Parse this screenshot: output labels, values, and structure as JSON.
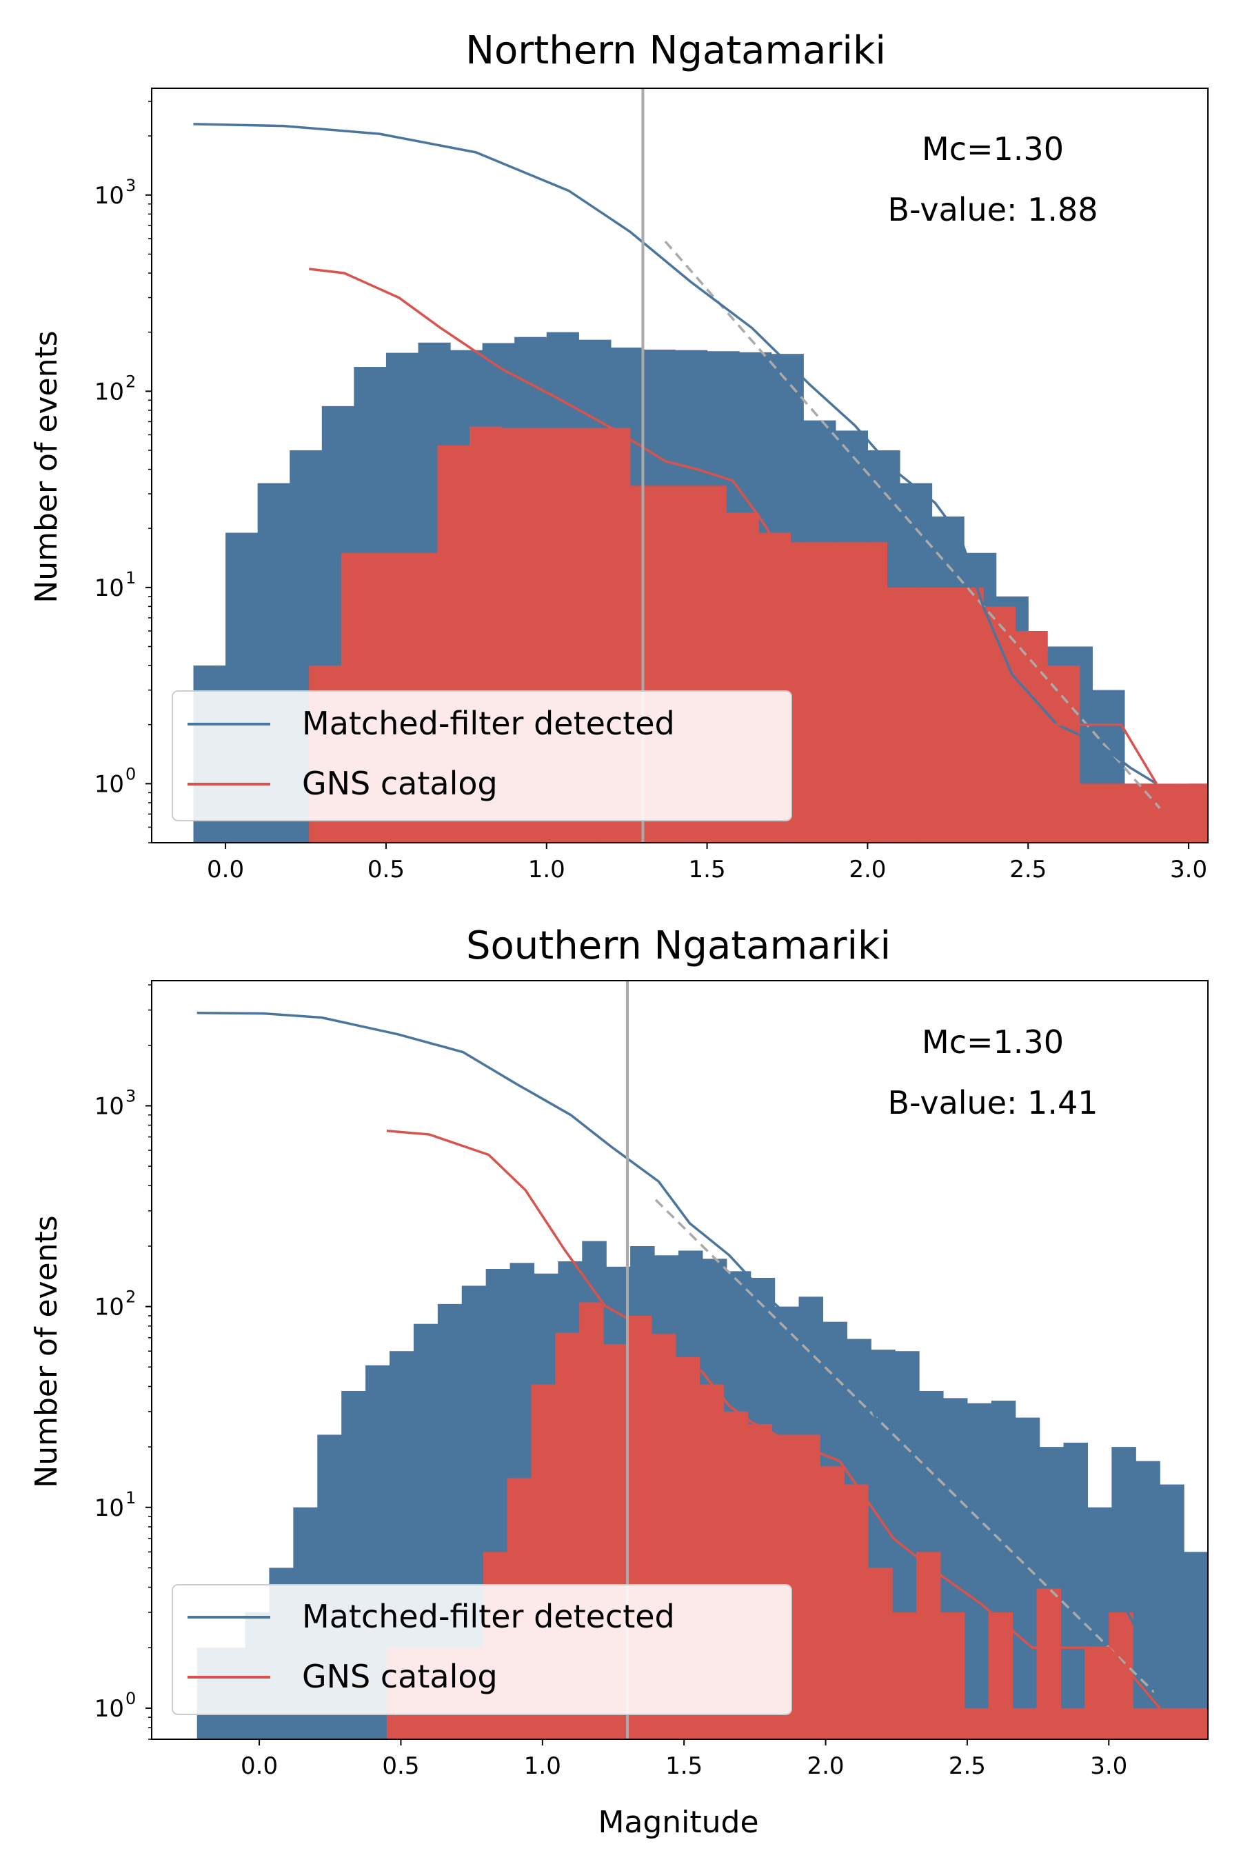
{
  "chart_data": [
    {
      "type": "histogram",
      "title": "Northern Ngatamariki",
      "xlabel": "",
      "ylabel": "Number of events",
      "xlim": [
        -0.23,
        3.06
      ],
      "ylim": [
        0.5,
        3500
      ],
      "log_y": true,
      "grid": false,
      "x_ticks": [
        "0.0",
        "0.5",
        "1.0",
        "1.5",
        "2.0",
        "2.5",
        "3.0"
      ],
      "y_ticks": [
        "10^0",
        "10^1",
        "10^2",
        "10^3"
      ],
      "annotations": {
        "mc": "Mc=1.30",
        "b_value": "B-value: 1.88"
      },
      "mc_line_x": 1.3,
      "legend": {
        "location": "lower-left",
        "entries": [
          "Matched-filter detected",
          "GNS catalog"
        ]
      },
      "colors": {
        "matched": "#4a759d",
        "gns": "#d9534d",
        "fit": "#aaaaaa",
        "mc": "#aaaaaa"
      },
      "hist_matched": {
        "x0": -0.1,
        "width": 0.1,
        "min": 0.5,
        "values": [
          4,
          19,
          34,
          50,
          84,
          133,
          157,
          177,
          162,
          176,
          189,
          200,
          183,
          167,
          163,
          162,
          160,
          158,
          155,
          71,
          63,
          50,
          34,
          23,
          15,
          9,
          5,
          5,
          3,
          1,
          0.5,
          1,
          1
        ]
      },
      "hist_gns": {
        "x0": 0.26,
        "width": 0.1,
        "min": 0.5,
        "values": [
          4,
          15,
          15,
          15,
          53,
          66,
          65,
          65,
          65,
          65,
          33,
          33,
          33,
          24,
          19,
          17,
          17,
          17,
          10,
          10,
          10,
          8,
          6,
          4,
          1,
          1,
          1,
          1,
          0.5,
          0.5,
          0.5,
          0.5,
          0.5,
          2,
          2
        ]
      },
      "cum_matched": {
        "x": [
          -0.1,
          0.18,
          0.48,
          0.78,
          1.07,
          1.26,
          1.45,
          1.64,
          1.82,
          1.96,
          2.08,
          2.21,
          2.29,
          2.36,
          2.45,
          2.59,
          2.72,
          2.82,
          2.9
        ],
        "y": [
          2300,
          2250,
          2050,
          1650,
          1050,
          650,
          360,
          210,
          108,
          67,
          40,
          27,
          18,
          8,
          3.6,
          2,
          1.6,
          1.2,
          1
        ]
      },
      "cum_gns": {
        "x": [
          0.26,
          0.37,
          0.54,
          0.67,
          0.86,
          1.03,
          1.21,
          1.37,
          1.47,
          1.58,
          1.67,
          1.77,
          1.86,
          1.94,
          2.05,
          2.14,
          2.24,
          2.32,
          2.41,
          2.46,
          2.54,
          2.62,
          2.7,
          2.79,
          2.9
        ],
        "y": [
          420,
          400,
          300,
          210,
          130,
          93,
          64,
          44,
          40,
          35,
          22,
          12,
          9.5,
          6.6,
          6,
          5,
          4.7,
          4.5,
          2.8,
          2.3,
          2,
          2,
          2,
          2,
          1
        ]
      },
      "fit_line": {
        "x": [
          1.37,
          2.91
        ],
        "y": [
          580,
          0.75
        ]
      }
    },
    {
      "type": "histogram",
      "title": "Southern Ngatamariki",
      "xlabel": "Magnitude",
      "ylabel": "Number of events",
      "xlim": [
        -0.38,
        3.35
      ],
      "ylim": [
        0.7,
        4200
      ],
      "log_y": true,
      "grid": false,
      "x_ticks": [
        "0.0",
        "0.5",
        "1.0",
        "1.5",
        "2.0",
        "2.5",
        "3.0"
      ],
      "y_ticks": [
        "10^0",
        "10^1",
        "10^2",
        "10^3"
      ],
      "annotations": {
        "mc": "Mc=1.30",
        "b_value": "B-value: 1.41"
      },
      "mc_line_x": 1.3,
      "legend": {
        "location": "lower-left",
        "entries": [
          "Matched-filter detected",
          "GNS catalog"
        ]
      },
      "colors": {
        "matched": "#4a759d",
        "gns": "#d9534d",
        "fit": "#aaaaaa",
        "mc": "#aaaaaa"
      },
      "hist_matched": {
        "x0": -0.22,
        "width": 0.085,
        "min": 0.7,
        "values": [
          2,
          2,
          3,
          5,
          10,
          23,
          38,
          51,
          60,
          82,
          103,
          127,
          154,
          165,
          146,
          168,
          212,
          158,
          200,
          180,
          190,
          173,
          150,
          139,
          100,
          112,
          84,
          69,
          61,
          60,
          38,
          35,
          33,
          34,
          28,
          20,
          21,
          10,
          20,
          17,
          13,
          6,
          3,
          3,
          2,
          2,
          1,
          1,
          0.7,
          0.7,
          0.7,
          0.7,
          0.7,
          3,
          3,
          3
        ]
      },
      "hist_gns": {
        "x0": 0.45,
        "width": 0.085,
        "min": 0.7,
        "values": [
          2,
          2,
          2,
          2,
          6,
          14,
          41,
          74,
          105,
          65,
          90,
          73,
          56,
          41,
          30,
          26,
          23,
          23,
          16,
          13,
          5,
          3,
          6,
          3,
          1,
          3,
          1,
          4,
          1,
          2,
          3,
          1,
          1,
          1,
          1,
          1,
          1,
          1,
          1,
          1,
          1,
          0.7,
          1,
          1,
          2,
          2,
          1
        ]
      },
      "cum_matched": {
        "x": [
          -0.22,
          0.02,
          0.22,
          0.49,
          0.72,
          0.91,
          1.1,
          1.24,
          1.41,
          1.52,
          1.66,
          1.8,
          1.94,
          2.04,
          2.14,
          2.25,
          2.36,
          2.47,
          2.56,
          2.73,
          2.94,
          3.04,
          3.11,
          3.18
        ],
        "y": [
          2900,
          2880,
          2750,
          2270,
          1850,
          1280,
          900,
          630,
          420,
          260,
          180,
          110,
          72,
          55,
          38,
          15,
          11,
          7.3,
          5.6,
          4,
          4,
          3.5,
          2.3,
          1
        ]
      },
      "cum_gns": {
        "x": [
          0.45,
          0.6,
          0.81,
          0.94,
          1.08,
          1.22,
          1.37,
          1.45,
          1.56,
          1.66,
          1.73,
          1.85,
          2.05,
          2.24,
          2.37,
          2.55,
          2.73,
          3.0,
          3.18
        ],
        "y": [
          750,
          720,
          570,
          380,
          190,
          101,
          77,
          55,
          48,
          32,
          27,
          22,
          17,
          7,
          5,
          3.3,
          2,
          2,
          1
        ]
      },
      "fit_line": {
        "x": [
          1.4,
          3.16
        ],
        "y": [
          340,
          1.2
        ]
      }
    }
  ]
}
